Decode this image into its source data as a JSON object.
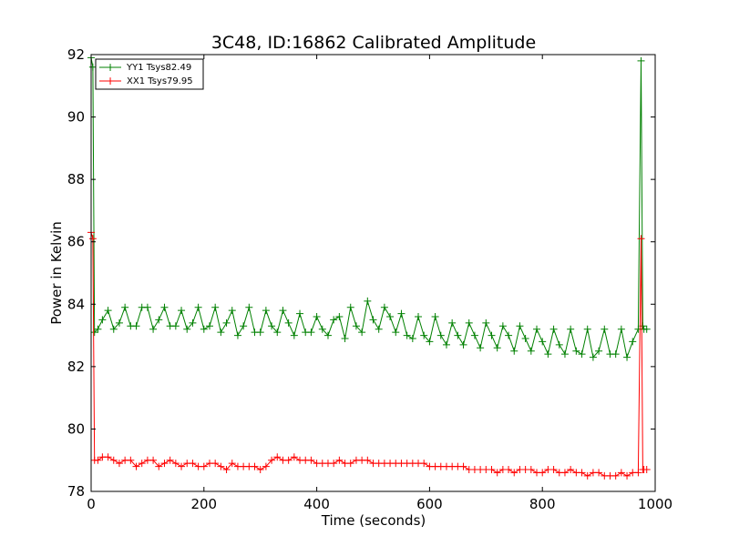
{
  "chart_data": {
    "type": "line",
    "title": "3C48, ID:16862 Calibrated Amplitude",
    "xlabel": "Time (seconds)",
    "ylabel": "Power in Kelvin",
    "xlim": [
      0,
      1000
    ],
    "ylim": [
      78,
      92
    ],
    "xticks": [
      0,
      200,
      400,
      600,
      800,
      1000
    ],
    "yticks": [
      78,
      80,
      82,
      84,
      86,
      88,
      90,
      92
    ],
    "grid": false,
    "legend_position": "top-left",
    "marker": "+",
    "series": [
      {
        "name": "YY1 Tsys82.49",
        "color": "#008000",
        "x": [
          0,
          3,
          6,
          12,
          20,
          30,
          40,
          50,
          60,
          70,
          80,
          90,
          100,
          110,
          120,
          130,
          140,
          150,
          160,
          170,
          180,
          190,
          200,
          210,
          220,
          230,
          240,
          250,
          260,
          270,
          280,
          290,
          300,
          310,
          320,
          330,
          340,
          350,
          360,
          370,
          380,
          390,
          400,
          410,
          420,
          430,
          440,
          450,
          460,
          470,
          480,
          490,
          500,
          510,
          520,
          530,
          540,
          550,
          560,
          570,
          580,
          590,
          600,
          610,
          620,
          630,
          640,
          650,
          660,
          670,
          680,
          690,
          700,
          710,
          720,
          730,
          740,
          750,
          760,
          770,
          780,
          790,
          800,
          810,
          820,
          830,
          840,
          850,
          860,
          870,
          880,
          890,
          900,
          910,
          920,
          930,
          940,
          950,
          960,
          970,
          975,
          978,
          980,
          985
        ],
        "y": [
          91.9,
          91.6,
          83.1,
          83.2,
          83.5,
          83.8,
          83.2,
          83.4,
          83.9,
          83.3,
          83.3,
          83.9,
          83.9,
          83.2,
          83.5,
          83.9,
          83.3,
          83.3,
          83.8,
          83.2,
          83.4,
          83.9,
          83.2,
          83.3,
          83.9,
          83.1,
          83.4,
          83.8,
          83.0,
          83.3,
          83.9,
          83.1,
          83.1,
          83.8,
          83.3,
          83.1,
          83.8,
          83.4,
          83.0,
          83.7,
          83.1,
          83.1,
          83.6,
          83.2,
          83.0,
          83.5,
          83.6,
          82.9,
          83.9,
          83.3,
          83.1,
          84.1,
          83.5,
          83.2,
          83.9,
          83.6,
          83.1,
          83.7,
          83.0,
          82.9,
          83.6,
          83.0,
          82.8,
          83.6,
          83.0,
          82.7,
          83.4,
          83.0,
          82.7,
          83.4,
          83.0,
          82.6,
          83.4,
          83.0,
          82.6,
          83.3,
          83.0,
          82.5,
          83.3,
          82.9,
          82.5,
          83.2,
          82.8,
          82.4,
          83.2,
          82.7,
          82.4,
          83.2,
          82.5,
          82.4,
          83.2,
          82.3,
          82.5,
          83.2,
          82.4,
          82.4,
          83.2,
          82.3,
          82.8,
          83.2,
          91.8,
          83.3,
          83.2,
          83.2
        ]
      },
      {
        "name": "XX1 Tsys79.95",
        "color": "#ff0000",
        "x": [
          0,
          3,
          6,
          12,
          20,
          30,
          40,
          50,
          60,
          70,
          80,
          90,
          100,
          110,
          120,
          130,
          140,
          150,
          160,
          170,
          180,
          190,
          200,
          210,
          220,
          230,
          240,
          250,
          260,
          270,
          280,
          290,
          300,
          310,
          320,
          330,
          340,
          350,
          360,
          370,
          380,
          390,
          400,
          410,
          420,
          430,
          440,
          450,
          460,
          470,
          480,
          490,
          500,
          510,
          520,
          530,
          540,
          550,
          560,
          570,
          580,
          590,
          600,
          610,
          620,
          630,
          640,
          650,
          660,
          670,
          680,
          690,
          700,
          710,
          720,
          730,
          740,
          750,
          760,
          770,
          780,
          790,
          800,
          810,
          820,
          830,
          840,
          850,
          860,
          870,
          880,
          890,
          900,
          910,
          920,
          930,
          940,
          950,
          960,
          970,
          975,
          978,
          980,
          985
        ],
        "y": [
          86.3,
          86.1,
          79.0,
          79.0,
          79.1,
          79.1,
          79.0,
          78.9,
          79.0,
          79.0,
          78.8,
          78.9,
          79.0,
          79.0,
          78.8,
          78.9,
          79.0,
          78.9,
          78.8,
          78.9,
          78.9,
          78.8,
          78.8,
          78.9,
          78.9,
          78.8,
          78.7,
          78.9,
          78.8,
          78.8,
          78.8,
          78.8,
          78.7,
          78.8,
          79.0,
          79.1,
          79.0,
          79.0,
          79.1,
          79.0,
          79.0,
          79.0,
          78.9,
          78.9,
          78.9,
          78.9,
          79.0,
          78.9,
          78.9,
          79.0,
          79.0,
          79.0,
          78.9,
          78.9,
          78.9,
          78.9,
          78.9,
          78.9,
          78.9,
          78.9,
          78.9,
          78.9,
          78.8,
          78.8,
          78.8,
          78.8,
          78.8,
          78.8,
          78.8,
          78.7,
          78.7,
          78.7,
          78.7,
          78.7,
          78.6,
          78.7,
          78.7,
          78.6,
          78.7,
          78.7,
          78.7,
          78.6,
          78.6,
          78.7,
          78.7,
          78.6,
          78.6,
          78.7,
          78.6,
          78.6,
          78.5,
          78.6,
          78.6,
          78.5,
          78.5,
          78.5,
          78.6,
          78.5,
          78.6,
          78.6,
          86.1,
          78.7,
          78.7,
          78.7
        ]
      }
    ]
  }
}
